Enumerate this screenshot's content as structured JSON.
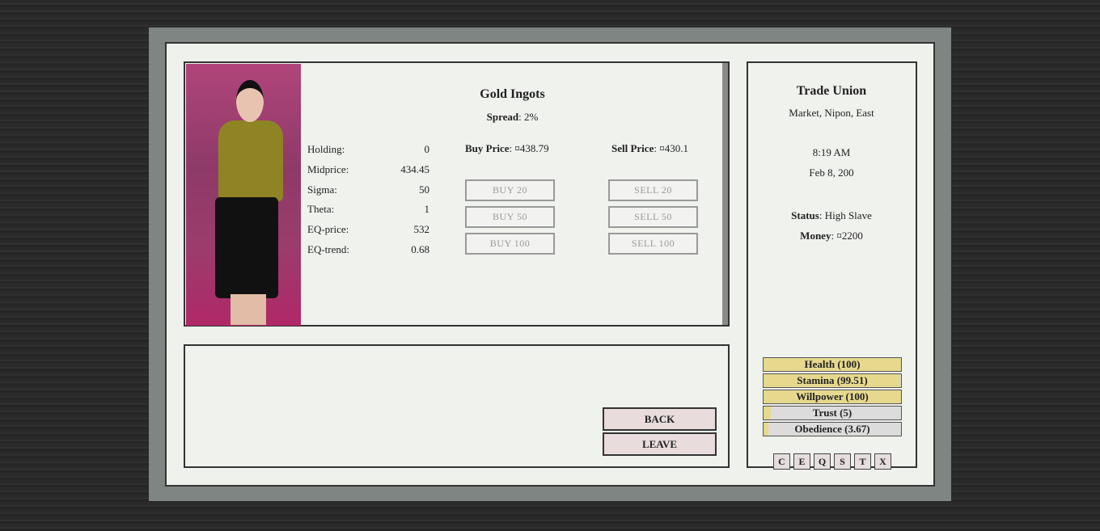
{
  "item": {
    "title": "Gold Ingots",
    "spread_label": "Spread",
    "spread_value": ": 2%",
    "buy_price_label": "Buy Price",
    "buy_price_value": ": ¤438.79",
    "sell_price_label": "Sell Price",
    "sell_price_value": ": ¤430.1",
    "stats": [
      {
        "label": "Holding:",
        "value": "0"
      },
      {
        "label": "Midprice:",
        "value": "434.45"
      },
      {
        "label": "Sigma:",
        "value": "50"
      },
      {
        "label": "Theta:",
        "value": "1"
      },
      {
        "label": "EQ-price:",
        "value": "532"
      },
      {
        "label": "EQ-trend:",
        "value": "0.68"
      }
    ],
    "buy_buttons": [
      "BUY 20",
      "BUY 50",
      "BUY 100"
    ],
    "sell_buttons": [
      "SELL 20",
      "SELL 50",
      "SELL 100"
    ]
  },
  "nav": {
    "back": "BACK",
    "leave": "LEAVE"
  },
  "sidebar": {
    "title": "Trade Union",
    "location": "Market, Nipon, East",
    "time": "8:19 AM",
    "date": "Feb 8, 200",
    "status_label": "Status",
    "status_value": ": High Slave",
    "money_label": "Money",
    "money_value": ": ¤2200",
    "bars": [
      {
        "label": "Health (100)",
        "percent": 100
      },
      {
        "label": "Stamina (99.51)",
        "percent": 99.51
      },
      {
        "label": "Willpower (100)",
        "percent": 100
      },
      {
        "label": "Trust (5)",
        "percent": 5
      },
      {
        "label": "Obedience (3.67)",
        "percent": 3.67
      }
    ],
    "shortcuts": [
      "C",
      "E",
      "Q",
      "S",
      "T",
      "X"
    ],
    "bar_color": "#e6d98e"
  }
}
